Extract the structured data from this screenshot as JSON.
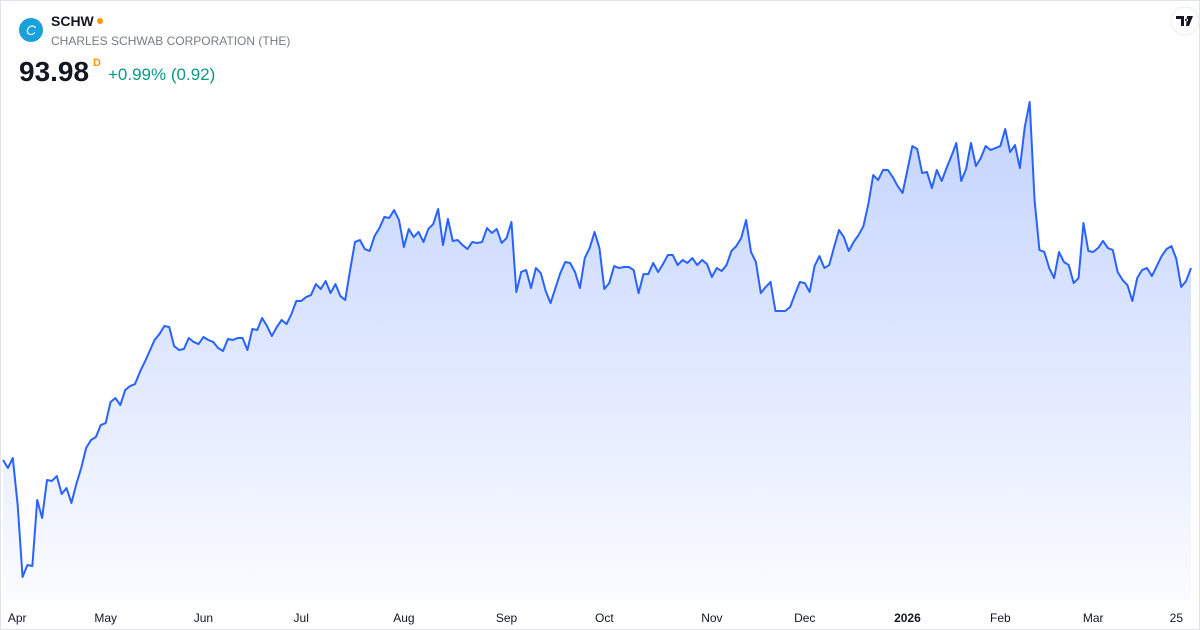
{
  "chart_data": {
    "type": "area",
    "logo_letter": "C",
    "symbol": "SCHW",
    "company": "CHARLES SCHWAB CORPORATION (THE)",
    "price": "93.98",
    "price_flag": "D",
    "change": "+0.99% (0.92)",
    "color": "#2962ff",
    "xlim": [
      0,
      243
    ],
    "xticks": [
      {
        "value": 1,
        "label": "Apr"
      },
      {
        "value": 21,
        "label": "May"
      },
      {
        "value": 41,
        "label": "Jun"
      },
      {
        "value": 61,
        "label": "Jul"
      },
      {
        "value": 82,
        "label": "Aug"
      },
      {
        "value": 103,
        "label": "Sep"
      },
      {
        "value": 123,
        "label": "Oct"
      },
      {
        "value": 145,
        "label": "Nov"
      },
      {
        "value": 164,
        "label": "Dec"
      },
      {
        "value": 185,
        "label": "2026"
      },
      {
        "value": 204,
        "label": "Feb"
      },
      {
        "value": 223,
        "label": "Mar"
      },
      {
        "value": 240,
        "label": "25"
      }
    ],
    "values": [
      76.51,
      75.78,
      76.69,
      72.41,
      65.86,
      66.95,
      66.86,
      72.87,
      71.23,
      74.69,
      74.6,
      75.05,
      73.41,
      73.96,
      72.59,
      74.32,
      75.78,
      77.6,
      78.33,
      78.6,
      79.69,
      79.87,
      81.79,
      82.15,
      81.51,
      82.88,
      83.24,
      83.42,
      84.52,
      85.43,
      86.43,
      87.43,
      87.97,
      88.7,
      88.61,
      86.88,
      86.52,
      86.61,
      87.61,
      87.25,
      87.06,
      87.7,
      87.43,
      87.25,
      86.7,
      86.43,
      87.52,
      87.43,
      87.61,
      87.61,
      86.52,
      88.43,
      88.34,
      89.43,
      88.7,
      87.79,
      88.61,
      89.25,
      88.88,
      89.79,
      90.98,
      90.98,
      91.34,
      91.52,
      92.52,
      92.07,
      92.8,
      91.7,
      92.52,
      91.43,
      91.07,
      93.8,
      96.35,
      96.53,
      95.71,
      95.53,
      96.89,
      97.62,
      98.62,
      98.53,
      99.26,
      98.35,
      95.89,
      97.53,
      96.8,
      97.26,
      96.35,
      97.53,
      97.98,
      99.35,
      96.07,
      98.44,
      96.44,
      96.53,
      96.07,
      95.71,
      96.35,
      96.26,
      96.35,
      97.62,
      97.17,
      97.53,
      96.26,
      96.71,
      98.17,
      91.8,
      93.62,
      93.8,
      92.16,
      93.98,
      93.52,
      91.89,
      90.79,
      92.16,
      93.52,
      94.53,
      94.44,
      93.62,
      92.16,
      94.89,
      95.8,
      97.26,
      95.8,
      92.07,
      92.61,
      94.16,
      93.98,
      94.07,
      94.07,
      93.8,
      91.7,
      93.43,
      93.43,
      94.44,
      93.62,
      94.34,
      95.16,
      95.16,
      94.25,
      94.71,
      94.44,
      94.89,
      94.25,
      94.71,
      94.34,
      93.16,
      93.98,
      93.71,
      94.25,
      95.53,
      95.98,
      96.71,
      98.35,
      95.44,
      94.53,
      91.7,
      92.25,
      92.71,
      90.07,
      90.07,
      90.07,
      90.43,
      91.61,
      92.71,
      92.61,
      91.8,
      94.16,
      95.07,
      93.98,
      94.25,
      95.89,
      97.44,
      96.8,
      95.53,
      96.35,
      96.98,
      97.8,
      99.8,
      102.44,
      101.99,
      102.9,
      102.9,
      102.26,
      101.44,
      100.81,
      102.9,
      105.08,
      104.81,
      102.63,
      102.72,
      101.26,
      102.9,
      101.9,
      103.08,
      104.17,
      105.36,
      101.9,
      102.99,
      105.36,
      103.26,
      103.99,
      105.08,
      104.72,
      104.9,
      105.08,
      106.63,
      104.54,
      105.17,
      103.08,
      106.81,
      109.09,
      100.17,
      95.62,
      95.44,
      93.98,
      93.07,
      95.44,
      94.53,
      94.25,
      92.61,
      93.07,
      98.08,
      95.53,
      95.44,
      95.8,
      96.44,
      95.8,
      95.62,
      93.62,
      92.89,
      92.43,
      90.98,
      93.07,
      93.8,
      93.98,
      93.25,
      94.16,
      95.07,
      95.71,
      95.98,
      94.8,
      92.25,
      92.8,
      93.98
    ]
  }
}
